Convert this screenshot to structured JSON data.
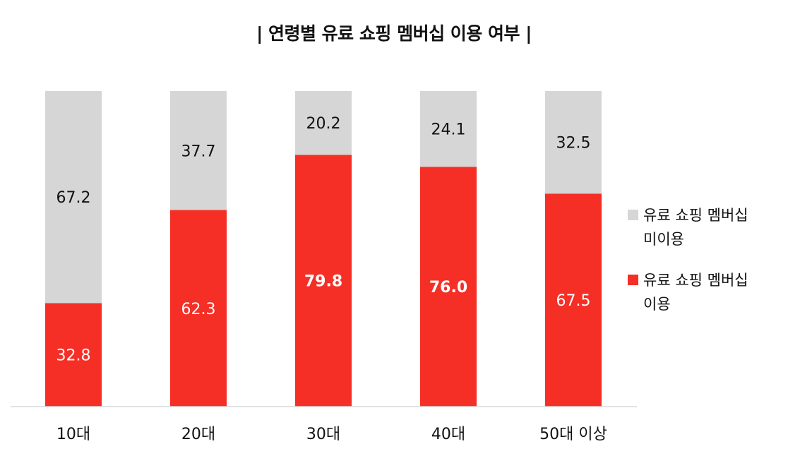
{
  "chart_data": {
    "type": "bar",
    "stacked": true,
    "percent": true,
    "title": "| 연령별 유료 쇼핑 멤버십 이용 여부 |",
    "categories": [
      "10대",
      "20대",
      "30대",
      "40대",
      "50대 이상"
    ],
    "ylim": [
      0,
      100
    ],
    "grid": false,
    "legend_position": "right",
    "series": [
      {
        "name": "유료 쇼핑 멤버십 이용",
        "color": "#f52f26",
        "labels": [
          "32.8",
          "62.3",
          "79.8",
          "76.0",
          "67.5"
        ],
        "values": [
          32.8,
          62.3,
          79.8,
          76.0,
          67.5
        ],
        "bold": [
          false,
          false,
          true,
          true,
          false
        ]
      },
      {
        "name": "유료 쇼핑 멤버십 미이용",
        "color": "#d6d6d6",
        "labels": [
          "67.2",
          "37.7",
          "20.2",
          "24.1",
          "32.5"
        ],
        "values": [
          67.2,
          37.7,
          20.2,
          24.1,
          32.5
        ],
        "bold": [
          false,
          false,
          false,
          false,
          false
        ]
      }
    ]
  },
  "legend": [
    {
      "line1": "유료 쇼핑 멤버십",
      "line2": "미이용",
      "color": "#d6d6d6"
    },
    {
      "line1": "유료 쇼핑 멤버십",
      "line2": "이용",
      "color": "#f52f26"
    }
  ]
}
